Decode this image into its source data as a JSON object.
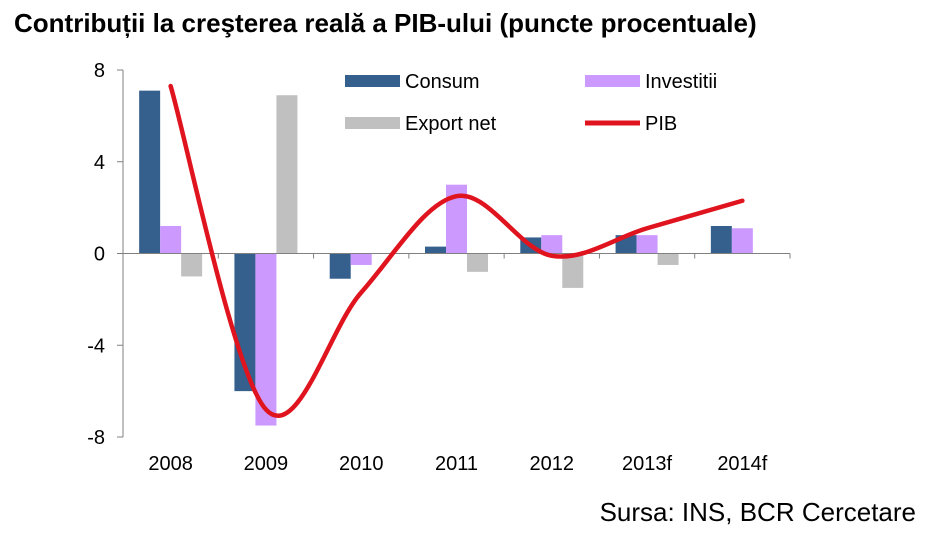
{
  "chart_data": {
    "type": "bar",
    "title": "Contribuții la creşterea reală a PIB-ului (puncte procentuale)",
    "categories": [
      "2008",
      "2009",
      "2010",
      "2011",
      "2012",
      "2013f",
      "2014f"
    ],
    "series": [
      {
        "name": "Consum",
        "type": "bar",
        "color": "#355f8d",
        "values": [
          7.1,
          -6.0,
          -1.1,
          0.3,
          0.7,
          0.8,
          1.2
        ]
      },
      {
        "name": "Investitii",
        "type": "bar",
        "color": "#cc99ff",
        "values": [
          1.2,
          -7.5,
          -0.5,
          3.0,
          0.8,
          0.8,
          1.1
        ]
      },
      {
        "name": "Export net",
        "type": "bar",
        "color": "#c0c0c0",
        "values": [
          -1.0,
          6.9,
          0.0,
          -0.8,
          -1.5,
          -0.5,
          0.0
        ]
      },
      {
        "name": "PIB",
        "type": "line",
        "color": "#e0141e",
        "values": [
          7.3,
          -6.8,
          -1.7,
          2.5,
          -0.1,
          1.1,
          2.3
        ]
      }
    ],
    "yticks": [
      "8",
      "4",
      "0",
      "-4",
      "-8"
    ],
    "ylim": [
      -8,
      8
    ],
    "grid": false,
    "legend_position": "top",
    "source": "Sursa: INS, BCR Cercetare"
  }
}
